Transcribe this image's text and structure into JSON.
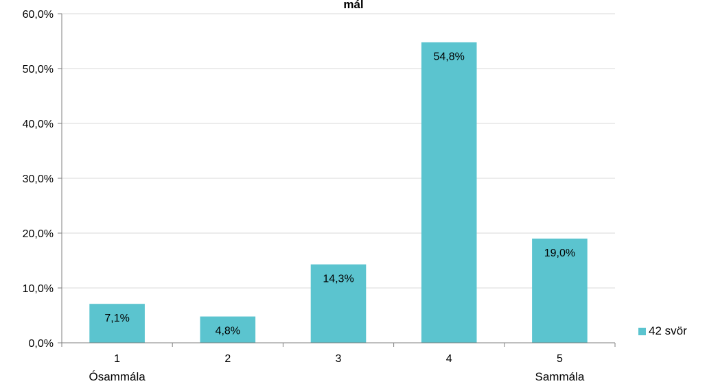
{
  "chart_data": {
    "type": "bar",
    "title": "mál",
    "categories": [
      "1",
      "2",
      "3",
      "4",
      "5"
    ],
    "category_sublabels": [
      "Ósammála",
      "",
      "",
      "",
      "Sammála"
    ],
    "series": [
      {
        "name": "42 svör",
        "values": [
          7.1,
          4.8,
          14.3,
          54.8,
          19.0
        ],
        "color": "#5BC4CF"
      }
    ],
    "data_labels": [
      "7,1%",
      "4,8%",
      "14,3%",
      "54,8%",
      "19,0%"
    ],
    "ylim": [
      0,
      60
    ],
    "yticks": [
      0,
      10,
      20,
      30,
      40,
      50,
      60
    ],
    "ytick_labels": [
      "0,0%",
      "10,0%",
      "20,0%",
      "30,0%",
      "40,0%",
      "50,0%",
      "60,0%"
    ],
    "xlabel": "",
    "ylabel": "",
    "grid": true,
    "legend_position": "right"
  },
  "colors": {
    "bar": "#5BC4CF",
    "grid": "#d9d9d9",
    "axis": "#7f7f7f"
  }
}
